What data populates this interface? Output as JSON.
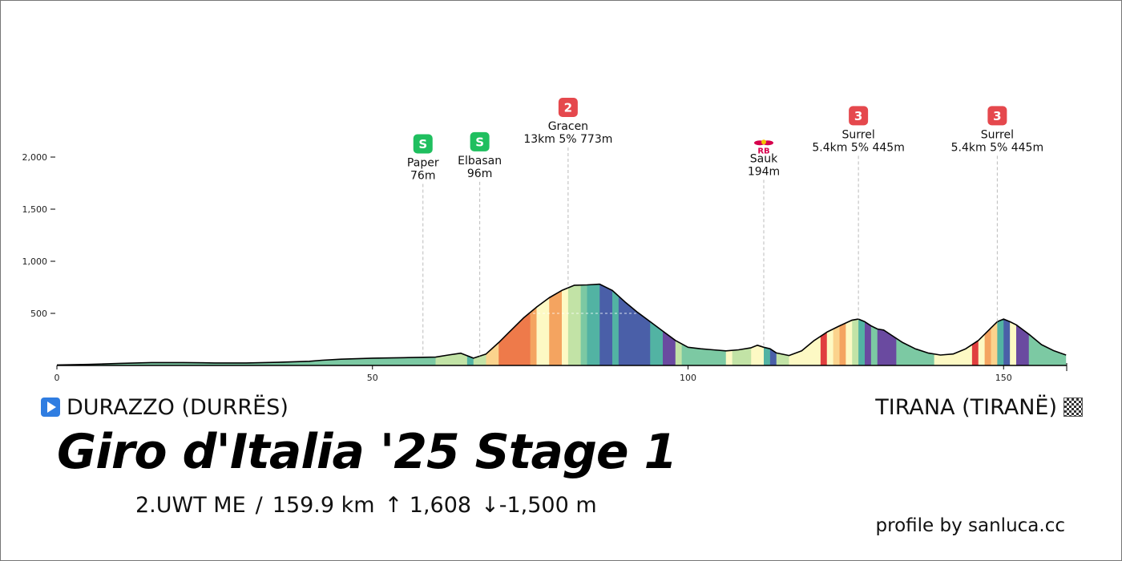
{
  "start": {
    "label": "DURAZZO (DURRËS)",
    "icon": "play-icon"
  },
  "finish": {
    "label": "TIRANA (TIRANË)",
    "icon": "checkered-flag-icon"
  },
  "title": "Giro d'Italia '25 Stage 1",
  "stats": {
    "category": "2.UWT ME",
    "separator": "/",
    "distance": "159.9 km",
    "gain": "↑ 1,608",
    "loss": "↓-1,500 m"
  },
  "credit": "profile by sanluca.cc",
  "colors": {
    "sprint_badge": "#1fbf5f",
    "kom_badge": "#e5484d",
    "redbull": "#d6004c",
    "gradient_scale": [
      "#fdf9c4",
      "#c2e3a6",
      "#7cc9a3",
      "#52b3a3",
      "#4a5fa8",
      "#6a4aa0",
      "#fbd38d",
      "#f4a460",
      "#ee7a4a",
      "#e03f3f"
    ]
  },
  "chart_data": {
    "type": "area",
    "xlabel": "",
    "ylabel": "",
    "xlim": [
      0,
      160
    ],
    "ylim": [
      0,
      2300
    ],
    "x_ticks": [
      0,
      50,
      100,
      150
    ],
    "x_tick_labels": [
      "0",
      "50",
      "100",
      "150"
    ],
    "y_ticks": [
      500,
      1000,
      1500,
      2000
    ],
    "y_tick_labels": [
      "500",
      "1,000",
      "1,500",
      "2,000"
    ],
    "grid": false,
    "elevation": {
      "x": [
        0,
        5,
        10,
        15,
        20,
        25,
        30,
        35,
        40,
        42,
        45,
        50,
        55,
        60,
        62,
        64,
        66,
        68,
        70,
        72,
        74,
        76,
        78,
        80,
        82,
        84,
        86,
        88,
        90,
        92,
        94,
        96,
        98,
        100,
        102,
        104,
        106,
        108,
        110,
        111,
        112,
        113,
        114,
        116,
        118,
        120,
        122,
        124,
        126,
        127,
        128,
        129,
        130,
        131,
        132,
        134,
        136,
        138,
        140,
        142,
        144,
        146,
        148,
        149,
        150,
        151,
        152,
        154,
        156,
        158,
        159.9
      ],
      "y": [
        5,
        10,
        20,
        28,
        28,
        24,
        24,
        30,
        40,
        50,
        60,
        70,
        75,
        80,
        100,
        118,
        70,
        110,
        220,
        340,
        460,
        560,
        650,
        720,
        770,
        773,
        780,
        720,
        610,
        510,
        420,
        330,
        240,
        175,
        160,
        150,
        140,
        150,
        170,
        194,
        175,
        160,
        120,
        95,
        140,
        240,
        320,
        380,
        435,
        445,
        420,
        380,
        350,
        340,
        300,
        220,
        160,
        120,
        100,
        110,
        160,
        240,
        360,
        420,
        445,
        420,
        390,
        300,
        200,
        140,
        100
      ]
    },
    "segments": [
      {
        "from": 0,
        "to": 60,
        "color": "#7cc9a3"
      },
      {
        "from": 60,
        "to": 65,
        "color": "#c2e3a6"
      },
      {
        "from": 65,
        "to": 66,
        "color": "#52b3a3"
      },
      {
        "from": 66,
        "to": 68,
        "color": "#c2e3a6"
      },
      {
        "from": 68,
        "to": 70,
        "color": "#fbd38d"
      },
      {
        "from": 70,
        "to": 75,
        "color": "#ee7a4a"
      },
      {
        "from": 75,
        "to": 76,
        "color": "#f4a460"
      },
      {
        "from": 76,
        "to": 78,
        "color": "#fdf9c4"
      },
      {
        "from": 78,
        "to": 80,
        "color": "#f4a460"
      },
      {
        "from": 80,
        "to": 81,
        "color": "#fdf9c4"
      },
      {
        "from": 81,
        "to": 83,
        "color": "#c2e3a6"
      },
      {
        "from": 83,
        "to": 84,
        "color": "#7cc9a3"
      },
      {
        "from": 84,
        "to": 86,
        "color": "#52b3a3"
      },
      {
        "from": 86,
        "to": 88,
        "color": "#4a5fa8"
      },
      {
        "from": 88,
        "to": 89,
        "color": "#52b3a3"
      },
      {
        "from": 89,
        "to": 94,
        "color": "#4a5fa8"
      },
      {
        "from": 94,
        "to": 96,
        "color": "#52b3a3"
      },
      {
        "from": 96,
        "to": 98,
        "color": "#6a4aa0"
      },
      {
        "from": 98,
        "to": 99,
        "color": "#c2e3a6"
      },
      {
        "from": 99,
        "to": 106,
        "color": "#7cc9a3"
      },
      {
        "from": 106,
        "to": 107,
        "color": "#fdf9c4"
      },
      {
        "from": 107,
        "to": 110,
        "color": "#c2e3a6"
      },
      {
        "from": 110,
        "to": 112,
        "color": "#fdf9c4"
      },
      {
        "from": 112,
        "to": 113,
        "color": "#52b3a3"
      },
      {
        "from": 113,
        "to": 114,
        "color": "#4a5fa8"
      },
      {
        "from": 114,
        "to": 116,
        "color": "#c2e3a6"
      },
      {
        "from": 116,
        "to": 121,
        "color": "#fdf9c4"
      },
      {
        "from": 121,
        "to": 122,
        "color": "#e03f3f"
      },
      {
        "from": 122,
        "to": 123,
        "color": "#fdf9c4"
      },
      {
        "from": 123,
        "to": 124,
        "color": "#fbd38d"
      },
      {
        "from": 124,
        "to": 125,
        "color": "#f4a460"
      },
      {
        "from": 125,
        "to": 126,
        "color": "#fdf9c4"
      },
      {
        "from": 126,
        "to": 127,
        "color": "#c2e3a6"
      },
      {
        "from": 127,
        "to": 128,
        "color": "#52b3a3"
      },
      {
        "from": 128,
        "to": 129,
        "color": "#6a4aa0"
      },
      {
        "from": 129,
        "to": 130,
        "color": "#7cc9a3"
      },
      {
        "from": 130,
        "to": 133,
        "color": "#6a4aa0"
      },
      {
        "from": 133,
        "to": 139,
        "color": "#7cc9a3"
      },
      {
        "from": 139,
        "to": 145,
        "color": "#fdf9c4"
      },
      {
        "from": 145,
        "to": 146,
        "color": "#e03f3f"
      },
      {
        "from": 146,
        "to": 147,
        "color": "#fdf9c4"
      },
      {
        "from": 147,
        "to": 148,
        "color": "#f4a460"
      },
      {
        "from": 148,
        "to": 149,
        "color": "#fbd38d"
      },
      {
        "from": 149,
        "to": 150,
        "color": "#52b3a3"
      },
      {
        "from": 150,
        "to": 151,
        "color": "#4a5fa8"
      },
      {
        "from": 151,
        "to": 152,
        "color": "#fdf9c4"
      },
      {
        "from": 152,
        "to": 154,
        "color": "#6a4aa0"
      },
      {
        "from": 154,
        "to": 159.9,
        "color": "#7cc9a3"
      }
    ],
    "markers": [
      {
        "km": 58,
        "badge": "S",
        "kind": "sprint",
        "name": "Paper",
        "detail": "76m",
        "label_elev": 1850
      },
      {
        "km": 67,
        "badge": "S",
        "kind": "sprint",
        "name": "Elbasan",
        "detail": "96m",
        "label_elev": 1870
      },
      {
        "km": 81,
        "badge": "2",
        "kind": "kom",
        "name": "Gracen",
        "detail": "13km 5% 773m",
        "label_elev": 2200
      },
      {
        "km": 112,
        "badge": "RB",
        "kind": "redbull",
        "name": "Sauk",
        "detail": "194m",
        "label_elev": 1890
      },
      {
        "km": 127,
        "badge": "3",
        "kind": "kom",
        "name": "Surrel",
        "detail": "5.4km 5% 445m",
        "label_elev": 2120
      },
      {
        "km": 149,
        "badge": "3",
        "kind": "kom",
        "name": "Surrel",
        "detail": "5.4km 5% 445m",
        "label_elev": 2120
      }
    ]
  }
}
